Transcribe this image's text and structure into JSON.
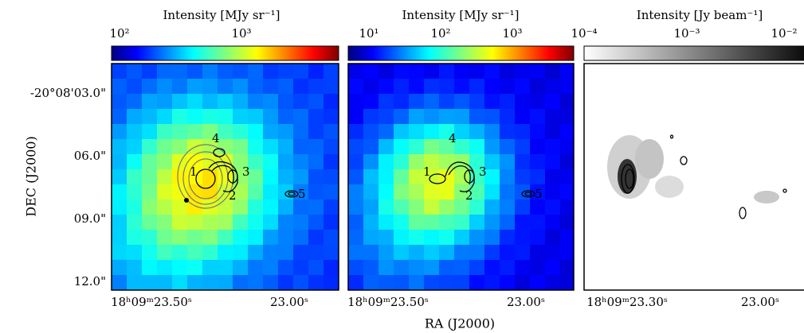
{
  "figure": {
    "y_label": "DEC (J2000)",
    "x_label": "RA (J2000)",
    "y_ticks": [
      "-20°08'03.0\"",
      "06.0\"",
      "09.0\"",
      "12.0\""
    ],
    "panels": [
      {
        "colorbar_label": "Intensity [MJy sr⁻¹]",
        "colorbar_ticks": [
          "10²",
          "10³"
        ],
        "x_ticks": [
          "18ʰ09ᵐ23.50ˢ",
          "23.00ˢ"
        ],
        "sources": [
          "1",
          "2",
          "3",
          "4",
          "5"
        ]
      },
      {
        "colorbar_label": "Intensity [MJy sr⁻¹]",
        "colorbar_ticks": [
          "10¹",
          "10²",
          "10³"
        ],
        "x_ticks": [
          "18ʰ09ᵐ23.50ˢ",
          "23.00ˢ"
        ],
        "sources": [
          "1",
          "2",
          "3",
          "4",
          "5"
        ]
      },
      {
        "colorbar_label": "Intensity [Jy beam⁻¹]",
        "colorbar_ticks": [
          "10⁻⁴",
          "10⁻³",
          "10⁻²"
        ],
        "x_ticks": [
          "18ʰ09ᵐ23.30ˢ",
          "23.00ˢ"
        ]
      }
    ]
  }
}
